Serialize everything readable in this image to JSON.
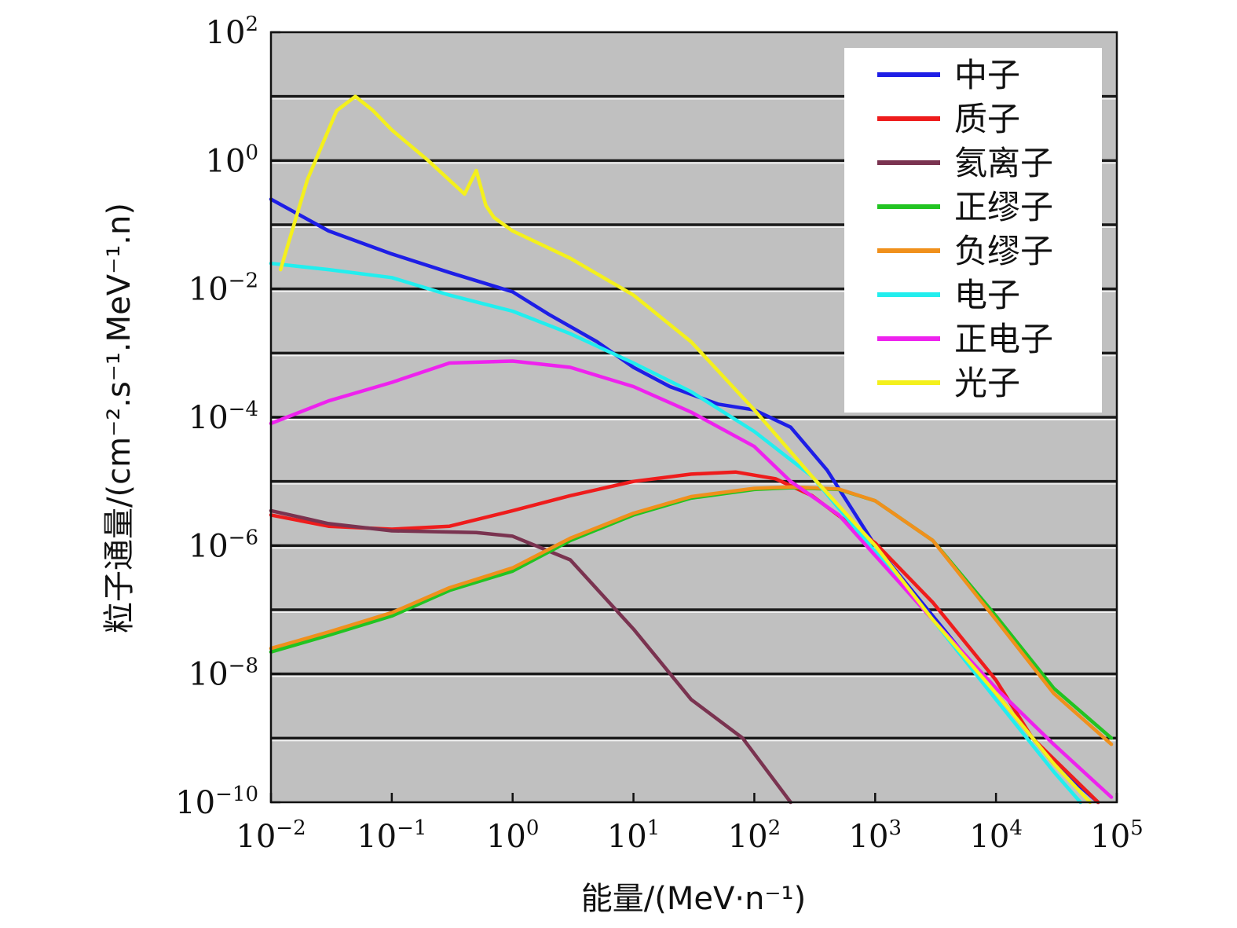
{
  "chart_data": {
    "type": "line",
    "title": "",
    "xlabel": "能量/(MeV·n⁻¹)",
    "ylabel": "粒子通量/(cm⁻².s⁻¹.MeV⁻¹.n)",
    "x_scale": "log",
    "y_scale": "log",
    "xlim": [
      0.01,
      100000
    ],
    "ylim": [
      1e-10,
      100
    ],
    "x_ticks": [
      {
        "base": "10",
        "exp": "−2",
        "value": 0.01
      },
      {
        "base": "10",
        "exp": "−1",
        "value": 0.1
      },
      {
        "base": "10",
        "exp": "0",
        "value": 1
      },
      {
        "base": "10",
        "exp": "1",
        "value": 10
      },
      {
        "base": "10",
        "exp": "2",
        "value": 100
      },
      {
        "base": "10",
        "exp": "3",
        "value": 1000
      },
      {
        "base": "10",
        "exp": "4",
        "value": 10000
      },
      {
        "base": "10",
        "exp": "5",
        "value": 100000
      }
    ],
    "y_ticks": [
      {
        "base": "10",
        "exp": "2",
        "value": 100
      },
      {
        "base": "10",
        "exp": "0",
        "value": 1
      },
      {
        "base": "10",
        "exp": "−2",
        "value": 0.01
      },
      {
        "base": "10",
        "exp": "−4",
        "value": 0.0001
      },
      {
        "base": "10",
        "exp": "−6",
        "value": 1e-06
      },
      {
        "base": "10",
        "exp": "−8",
        "value": 1e-08
      },
      {
        "base": "10",
        "exp": "−10",
        "value": 1e-10
      }
    ],
    "grid": "horizontal, every decade",
    "plot_background": "#c0c0c0",
    "legend_position": "top-right",
    "series": [
      {
        "name": "中子",
        "color": "#1e1ee6",
        "points": [
          [
            0.01,
            0.25
          ],
          [
            0.03,
            0.08
          ],
          [
            0.1,
            0.035
          ],
          [
            0.3,
            0.018
          ],
          [
            1,
            0.009
          ],
          [
            2,
            0.004
          ],
          [
            5,
            0.0015
          ],
          [
            10,
            0.0006
          ],
          [
            20,
            0.0003
          ],
          [
            50,
            0.00016
          ],
          [
            100,
            0.00013
          ],
          [
            200,
            7e-05
          ],
          [
            400,
            1.5e-05
          ],
          [
            1000,
            1e-06
          ],
          [
            3000,
            8e-08
          ],
          [
            10000,
            5e-09
          ],
          [
            30000,
            4e-10
          ],
          [
            70000,
            1e-10
          ]
        ]
      },
      {
        "name": "质子",
        "color": "#ee1c1c",
        "points": [
          [
            0.01,
            3e-06
          ],
          [
            0.03,
            2e-06
          ],
          [
            0.1,
            1.8e-06
          ],
          [
            0.3,
            2e-06
          ],
          [
            1,
            3.5e-06
          ],
          [
            3,
            6e-06
          ],
          [
            10,
            1e-05
          ],
          [
            30,
            1.3e-05
          ],
          [
            70,
            1.4e-05
          ],
          [
            150,
            1.1e-05
          ],
          [
            300,
            6e-06
          ],
          [
            1000,
            1.1e-06
          ],
          [
            3000,
            1.3e-07
          ],
          [
            10000,
            8e-09
          ],
          [
            20000,
            1e-09
          ],
          [
            70000,
            1e-10
          ]
        ]
      },
      {
        "name": "氦离子",
        "color": "#7a3350",
        "points": [
          [
            0.01,
            3.5e-06
          ],
          [
            0.03,
            2.2e-06
          ],
          [
            0.1,
            1.7e-06
          ],
          [
            0.5,
            1.6e-06
          ],
          [
            1,
            1.4e-06
          ],
          [
            3,
            6e-07
          ],
          [
            10,
            5e-08
          ],
          [
            30,
            4e-09
          ],
          [
            80,
            1e-09
          ],
          [
            200,
            1e-10
          ]
        ]
      },
      {
        "name": "正缪子",
        "color": "#22c422",
        "points": [
          [
            0.01,
            2.2e-08
          ],
          [
            0.03,
            4e-08
          ],
          [
            0.1,
            8e-08
          ],
          [
            0.3,
            2e-07
          ],
          [
            1,
            4e-07
          ],
          [
            3,
            1.2e-06
          ],
          [
            10,
            3e-06
          ],
          [
            30,
            5.5e-06
          ],
          [
            100,
            7.5e-06
          ],
          [
            200,
            8e-06
          ],
          [
            500,
            7.5e-06
          ],
          [
            1000,
            5e-06
          ],
          [
            3000,
            1.2e-06
          ],
          [
            10000,
            8e-08
          ],
          [
            30000,
            6e-09
          ],
          [
            90000,
            1e-09
          ]
        ]
      },
      {
        "name": "负缪子",
        "color": "#f0901c",
        "points": [
          [
            0.01,
            2.5e-08
          ],
          [
            0.03,
            4.5e-08
          ],
          [
            0.1,
            9e-08
          ],
          [
            0.3,
            2.2e-07
          ],
          [
            1,
            4.5e-07
          ],
          [
            3,
            1.3e-06
          ],
          [
            10,
            3.2e-06
          ],
          [
            30,
            5.8e-06
          ],
          [
            100,
            7.8e-06
          ],
          [
            200,
            8.2e-06
          ],
          [
            500,
            7.6e-06
          ],
          [
            1000,
            5e-06
          ],
          [
            3000,
            1.2e-06
          ],
          [
            10000,
            7e-08
          ],
          [
            30000,
            5e-09
          ],
          [
            90000,
            8e-10
          ]
        ]
      },
      {
        "name": "电子",
        "color": "#22eeee",
        "points": [
          [
            0.01,
            0.025
          ],
          [
            0.03,
            0.02
          ],
          [
            0.1,
            0.015
          ],
          [
            0.3,
            0.008
          ],
          [
            1,
            0.0045
          ],
          [
            3,
            0.002
          ],
          [
            10,
            0.0007
          ],
          [
            30,
            0.00025
          ],
          [
            100,
            6e-05
          ],
          [
            300,
            1.2e-05
          ],
          [
            1000,
            8e-07
          ],
          [
            3000,
            7e-08
          ],
          [
            10000,
            4e-09
          ],
          [
            30000,
            3e-10
          ],
          [
            50000,
            1e-10
          ]
        ]
      },
      {
        "name": "正电子",
        "color": "#ee22ee",
        "points": [
          [
            0.01,
            8e-05
          ],
          [
            0.03,
            0.00018
          ],
          [
            0.1,
            0.00035
          ],
          [
            0.3,
            0.0007
          ],
          [
            1,
            0.00075
          ],
          [
            3,
            0.0006
          ],
          [
            10,
            0.0003
          ],
          [
            30,
            0.00012
          ],
          [
            100,
            3.5e-05
          ],
          [
            200,
            1e-05
          ],
          [
            500,
            3e-06
          ],
          [
            1000,
            7e-07
          ],
          [
            3000,
            7e-08
          ],
          [
            10000,
            6e-09
          ],
          [
            30000,
            8e-10
          ],
          [
            90000,
            1.2e-10
          ]
        ]
      },
      {
        "name": "光子",
        "color": "#f4f01c",
        "points": [
          [
            0.012,
            0.02
          ],
          [
            0.02,
            0.5
          ],
          [
            0.035,
            6
          ],
          [
            0.05,
            10
          ],
          [
            0.07,
            6
          ],
          [
            0.1,
            3
          ],
          [
            0.2,
            1
          ],
          [
            0.4,
            0.3
          ],
          [
            0.5,
            0.7
          ],
          [
            0.6,
            0.2
          ],
          [
            0.7,
            0.13
          ],
          [
            1,
            0.08
          ],
          [
            3,
            0.03
          ],
          [
            10,
            0.008
          ],
          [
            30,
            0.0015
          ],
          [
            100,
            0.00013
          ],
          [
            300,
            1.2e-05
          ],
          [
            1000,
            1e-06
          ],
          [
            3000,
            7e-08
          ],
          [
            10000,
            5e-09
          ],
          [
            30000,
            4e-10
          ],
          [
            60000,
            1e-10
          ]
        ]
      }
    ]
  }
}
